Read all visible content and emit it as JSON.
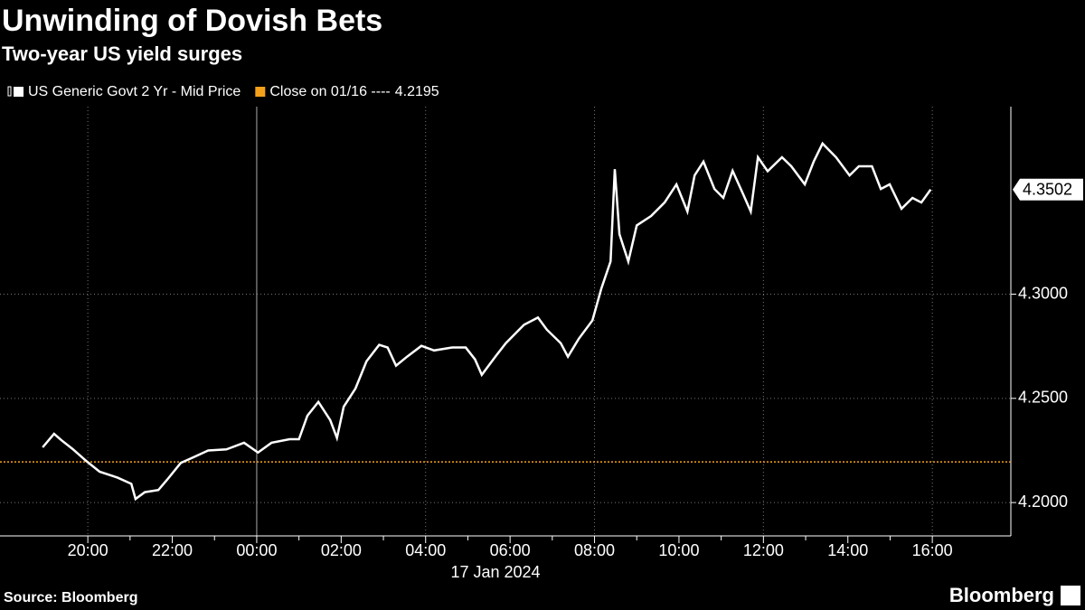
{
  "chart_data": {
    "type": "line",
    "title": "Unwinding of Dovish Bets",
    "subtitle": "Two-year US yield surges",
    "source": "Source: Bloomberg",
    "brand": "Bloomberg",
    "x_label": "17 Jan 2024",
    "xlim": [
      17.92,
      41.86
    ],
    "ylim": [
      4.184,
      4.39
    ],
    "xticks": [
      {
        "value": 20,
        "label": "20:00"
      },
      {
        "value": 22,
        "label": "22:00"
      },
      {
        "value": 24,
        "label": "00:00"
      },
      {
        "value": 26,
        "label": "02:00"
      },
      {
        "value": 28,
        "label": "04:00"
      },
      {
        "value": 30,
        "label": "06:00"
      },
      {
        "value": 32,
        "label": "08:00"
      },
      {
        "value": 34,
        "label": "10:00"
      },
      {
        "value": 36,
        "label": "12:00"
      },
      {
        "value": 38,
        "label": "14:00"
      },
      {
        "value": 40,
        "label": "16:00"
      }
    ],
    "yticks": [
      {
        "value": 4.2,
        "label": "4.2000"
      },
      {
        "value": 4.25,
        "label": "4.2500"
      },
      {
        "value": 4.3,
        "label": "4.3000"
      }
    ],
    "grid": true,
    "reference_line": {
      "name": "Close on 01/16 ----",
      "value": 4.2195,
      "color": "#f5a01a"
    },
    "series": [
      {
        "name": "US Generic Govt 2 Yr - Mid Price",
        "color": "#ffffff",
        "x": [
          18.93,
          19.2,
          19.37,
          19.64,
          19.96,
          20.28,
          20.7,
          21.03,
          21.13,
          21.35,
          21.67,
          21.88,
          22.2,
          22.53,
          22.85,
          23.28,
          23.7,
          24.03,
          24.35,
          24.78,
          25.0,
          25.2,
          25.46,
          25.74,
          25.9,
          26.06,
          26.34,
          26.6,
          26.9,
          27.1,
          27.3,
          27.56,
          27.9,
          28.2,
          28.63,
          28.95,
          29.17,
          29.33,
          29.65,
          29.9,
          30.33,
          30.66,
          30.87,
          31.2,
          31.37,
          31.63,
          31.95,
          32.16,
          32.38,
          32.48,
          32.59,
          32.8,
          33.0,
          33.34,
          33.66,
          33.94,
          34.2,
          34.37,
          34.58,
          34.84,
          35.05,
          35.27,
          35.52,
          35.7,
          35.87,
          36.1,
          36.44,
          36.66,
          36.98,
          37.19,
          37.4,
          37.72,
          38.04,
          38.26,
          38.57,
          38.78,
          38.99,
          39.27,
          39.53,
          39.74,
          39.96
        ],
        "values": [
          4.2265,
          4.233,
          4.23,
          4.2257,
          4.22,
          4.2148,
          4.212,
          4.209,
          4.2017,
          4.205,
          4.206,
          4.211,
          4.219,
          4.222,
          4.225,
          4.2255,
          4.2287,
          4.224,
          4.2287,
          4.2304,
          4.2304,
          4.2417,
          4.2483,
          4.2396,
          4.231,
          4.246,
          4.2548,
          4.2678,
          4.2757,
          4.2744,
          4.2657,
          4.27,
          4.2752,
          4.273,
          4.2744,
          4.2744,
          4.2687,
          4.2613,
          4.27,
          4.2765,
          4.2853,
          4.2888,
          4.283,
          4.2765,
          4.27,
          4.2787,
          4.2874,
          4.3026,
          4.3157,
          4.36,
          4.3288,
          4.3157,
          4.333,
          4.3375,
          4.344,
          4.3527,
          4.3397,
          4.357,
          4.3636,
          4.3505,
          4.3462,
          4.3592,
          4.348,
          4.3397,
          4.3657,
          4.359,
          4.3657,
          4.3614,
          4.3527,
          4.3636,
          4.3723,
          4.3657,
          4.357,
          4.3614,
          4.3614,
          4.3505,
          4.3527,
          4.341,
          4.3462,
          4.344,
          4.3502
        ]
      }
    ]
  }
}
